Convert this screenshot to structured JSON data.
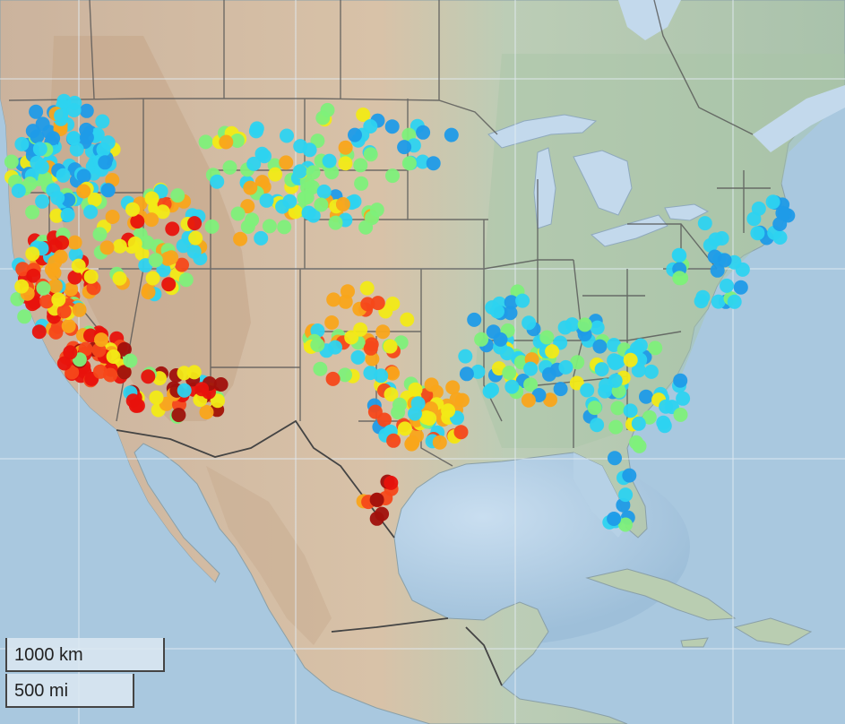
{
  "map": {
    "scale_bar": {
      "metric_label": "1000 km",
      "imperial_label": "500 mi"
    },
    "colors": {
      "ocean": "#a9c8df",
      "ocean_deep": "#7fa6c6",
      "land_north": "#a7c2a6",
      "land_west": "#d3b8a2",
      "land_east": "#b4c8b4",
      "land_south": "#cdd7c2",
      "mountain": "#c6a98d",
      "lakes": "#c3d9ec",
      "borders": "#555555",
      "graticule": "#dce6ef"
    },
    "marker_palette": [
      "#1f9be8",
      "#2dd3f0",
      "#7ef07a",
      "#f2ea16",
      "#f9a51a",
      "#f6481a",
      "#e8120c",
      "#a0100c"
    ],
    "marker_legend_visible": false
  }
}
